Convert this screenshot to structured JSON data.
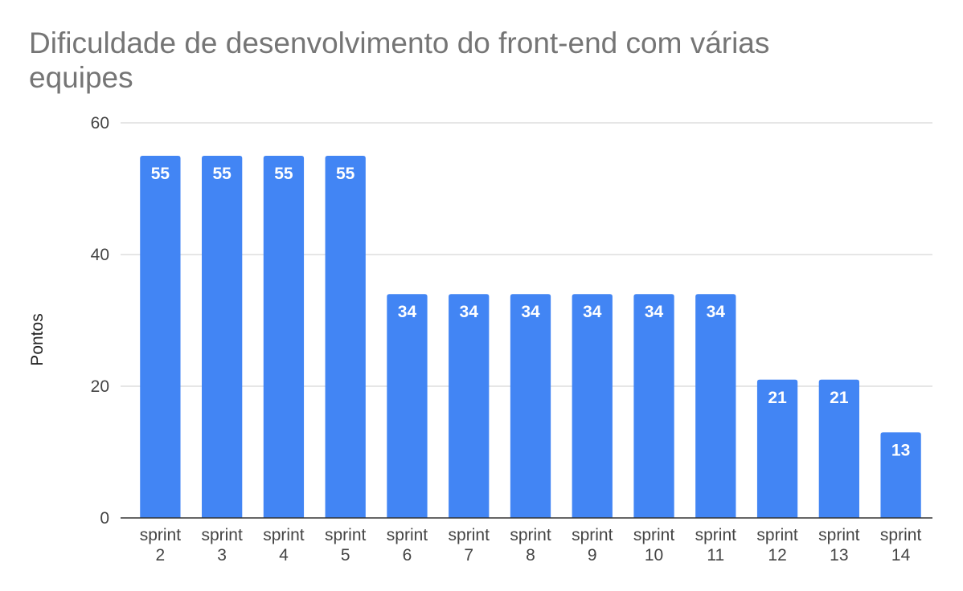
{
  "chart_data": {
    "type": "bar",
    "title": "Dificuldade de desenvolvimento do front-end com várias equipes",
    "xlabel": "",
    "ylabel": "Pontos",
    "categories": [
      [
        "sprint",
        "2"
      ],
      [
        "sprint",
        "3"
      ],
      [
        "sprint",
        "4"
      ],
      [
        "sprint",
        "5"
      ],
      [
        "sprint",
        "6"
      ],
      [
        "sprint",
        "7"
      ],
      [
        "sprint",
        "8"
      ],
      [
        "sprint",
        "9"
      ],
      [
        "sprint",
        "10"
      ],
      [
        "sprint",
        "11"
      ],
      [
        "sprint",
        "12"
      ],
      [
        "sprint",
        "13"
      ],
      [
        "sprint",
        "14"
      ]
    ],
    "values": [
      55,
      55,
      55,
      55,
      34,
      34,
      34,
      34,
      34,
      34,
      21,
      21,
      13
    ],
    "ylim": [
      0,
      60
    ],
    "yticks": [
      "0",
      "20",
      "40",
      "60"
    ],
    "grid": true,
    "bar_color": "#4285f4",
    "data_labels": true
  }
}
